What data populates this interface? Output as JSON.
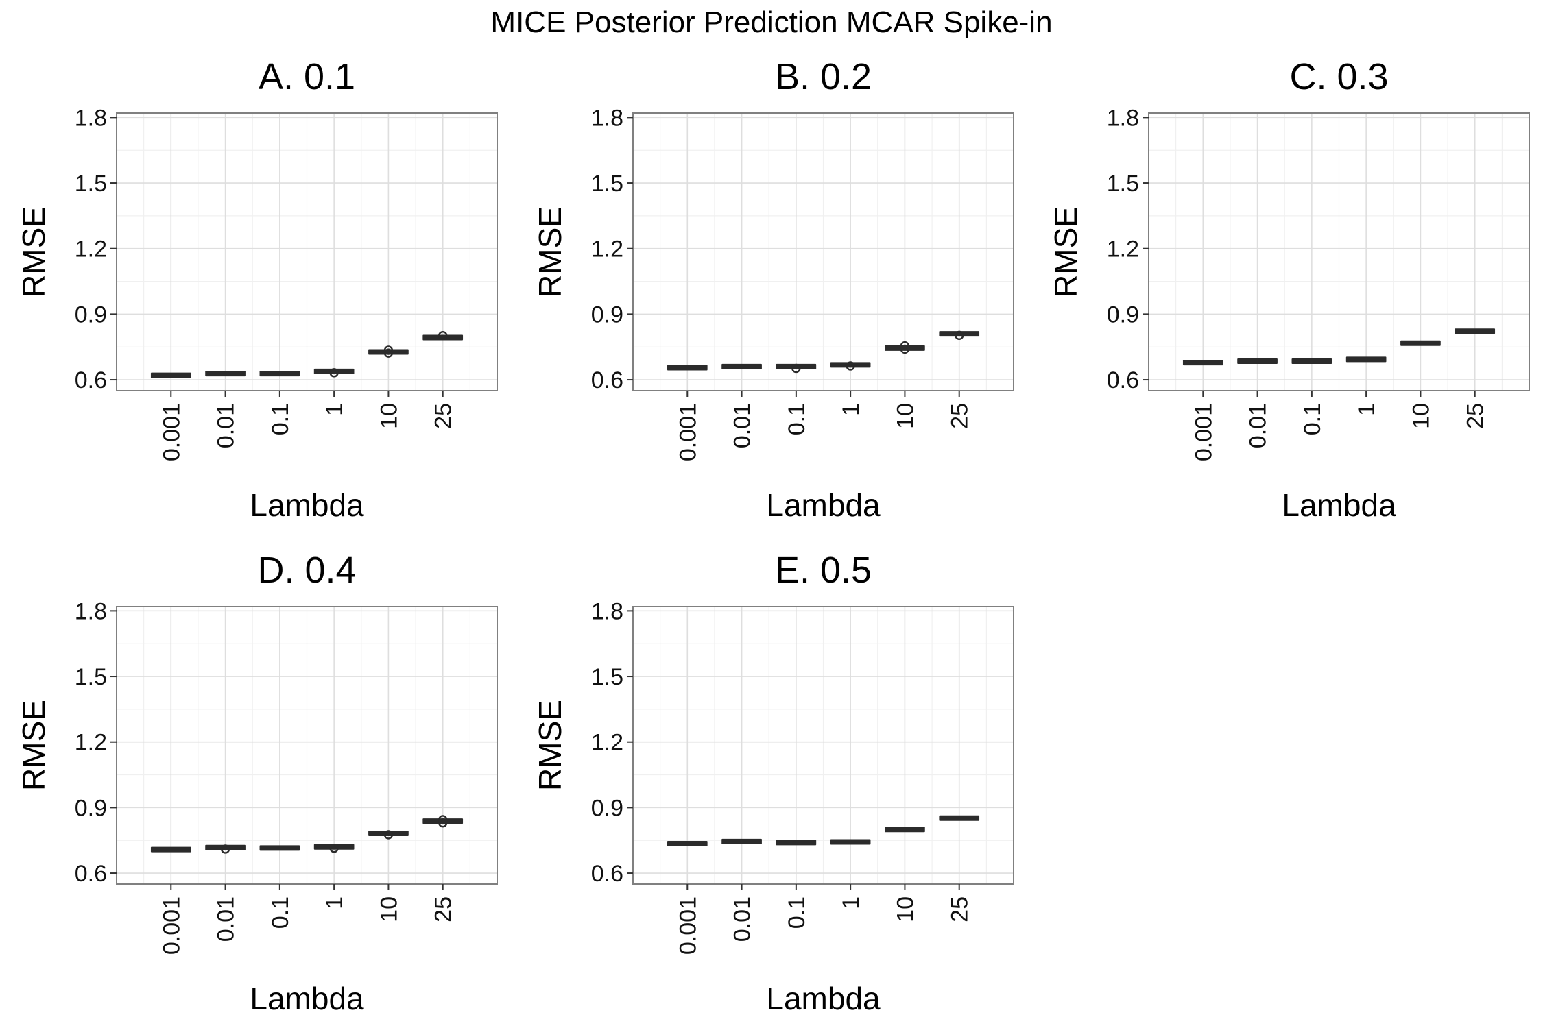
{
  "figure": {
    "title": "MICE Posterior Prediction MCAR Spike-in"
  },
  "colors": {
    "box": "#2b2b2b",
    "grid_major": "#dedede",
    "grid_minor": "#f0f0f0",
    "panel_border": "#808080"
  },
  "chart_data": [
    {
      "type": "box",
      "title": "A. 0.1",
      "xlabel": "Lambda",
      "ylabel": "RMSE",
      "categories": [
        "0.001",
        "0.01",
        "0.1",
        "1",
        "10",
        "25"
      ],
      "ylim": [
        0.55,
        1.82
      ],
      "yticks": [
        "0.6",
        "0.9",
        "1.2",
        "1.5",
        "1.8"
      ],
      "series": [
        {
          "medians": [
            0.62,
            0.628,
            0.628,
            0.638,
            0.727,
            0.793
          ],
          "outliers": [
            [],
            [],
            [],
            [
              0.632
            ],
            [
              0.722,
              0.735
            ],
            [
              0.802
            ]
          ]
        }
      ]
    },
    {
      "type": "box",
      "title": "B. 0.2",
      "xlabel": "Lambda",
      "ylabel": "RMSE",
      "categories": [
        "0.001",
        "0.01",
        "0.1",
        "1",
        "10",
        "25"
      ],
      "ylim": [
        0.55,
        1.82
      ],
      "yticks": [
        "0.6",
        "0.9",
        "1.2",
        "1.5",
        "1.8"
      ],
      "series": [
        {
          "medians": [
            0.655,
            0.66,
            0.66,
            0.668,
            0.745,
            0.81
          ],
          "outliers": [
            [],
            [],
            [
              0.652
            ],
            [
              0.663
            ],
            [
              0.74,
              0.755
            ],
            [
              0.803
            ]
          ]
        }
      ]
    },
    {
      "type": "box",
      "title": "C. 0.3",
      "xlabel": "Lambda",
      "ylabel": "RMSE",
      "categories": [
        "0.001",
        "0.01",
        "0.1",
        "1",
        "10",
        "25"
      ],
      "ylim": [
        0.55,
        1.82
      ],
      "yticks": [
        "0.6",
        "0.9",
        "1.2",
        "1.5",
        "1.8"
      ],
      "series": [
        {
          "medians": [
            0.678,
            0.685,
            0.685,
            0.693,
            0.767,
            0.822
          ],
          "outliers": [
            [],
            [],
            [],
            [],
            [],
            []
          ]
        }
      ]
    },
    {
      "type": "box",
      "title": "D. 0.4",
      "xlabel": "Lambda",
      "ylabel": "RMSE",
      "categories": [
        "0.001",
        "0.01",
        "0.1",
        "1",
        "10",
        "25"
      ],
      "ylim": [
        0.55,
        1.82
      ],
      "yticks": [
        "0.6",
        "0.9",
        "1.2",
        "1.5",
        "1.8"
      ],
      "series": [
        {
          "medians": [
            0.708,
            0.717,
            0.715,
            0.72,
            0.782,
            0.838
          ],
          "outliers": [
            [],
            [
              0.71
            ],
            [],
            [
              0.714
            ],
            [
              0.776
            ],
            [
              0.83,
              0.845
            ]
          ]
        }
      ]
    },
    {
      "type": "box",
      "title": "E. 0.5",
      "xlabel": "Lambda",
      "ylabel": "RMSE",
      "categories": [
        "0.001",
        "0.01",
        "0.1",
        "1",
        "10",
        "25"
      ],
      "ylim": [
        0.55,
        1.82
      ],
      "yticks": [
        "0.6",
        "0.9",
        "1.2",
        "1.5",
        "1.8"
      ],
      "series": [
        {
          "medians": [
            0.735,
            0.745,
            0.74,
            0.743,
            0.8,
            0.852
          ],
          "outliers": [
            [],
            [],
            [],
            [],
            [],
            []
          ]
        }
      ]
    }
  ]
}
